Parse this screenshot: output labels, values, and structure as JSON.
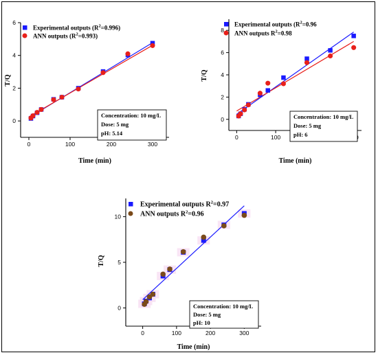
{
  "chart_data": [
    {
      "type": "scatter",
      "xlabel": "Time (min)",
      "ylabel": "T/Q",
      "xlim": [
        -20,
        340
      ],
      "ylim": [
        -1,
        6
      ],
      "xticks": [
        0,
        100,
        200,
        300
      ],
      "yticks": [
        0,
        2,
        4,
        6
      ],
      "legend": [
        {
          "label_main": "Experimental outputs (R",
          "label_sup": "2",
          "label_tail": "=0.996)",
          "color": "#1a1aff",
          "marker": "square"
        },
        {
          "label_main": "ANN outputs (R",
          "label_sup": "2",
          "label_tail": "=0.993)",
          "color": "#e8201a",
          "marker": "circle"
        }
      ],
      "info_lines": [
        "Concentration: 10 mg/L",
        "Dose: 5 mg",
        "pH: 5.14"
      ],
      "series": [
        {
          "name": "Experimental outputs (R2=0.996)",
          "color": "#1a1aff",
          "marker": "square",
          "x": [
            5,
            10,
            20,
            30,
            60,
            80,
            120,
            180,
            240,
            300
          ],
          "y": [
            0.15,
            0.3,
            0.5,
            0.7,
            1.32,
            1.45,
            2.0,
            3.02,
            4.02,
            4.75
          ]
        },
        {
          "name": "ANN outputs (R2=0.993)",
          "color": "#e8201a",
          "marker": "circle",
          "x": [
            5,
            10,
            20,
            30,
            60,
            80,
            120,
            180,
            240,
            300
          ],
          "y": [
            0.18,
            0.32,
            0.52,
            0.7,
            1.3,
            1.45,
            1.95,
            2.95,
            4.1,
            4.6
          ]
        }
      ],
      "fits": [
        {
          "color": "#1a1aff",
          "x": [
            0,
            300
          ],
          "y": [
            0.2,
            4.78
          ]
        },
        {
          "color": "#e8201a",
          "x": [
            0,
            300
          ],
          "y": [
            0.25,
            4.62
          ]
        }
      ]
    },
    {
      "type": "scatter",
      "xlabel": "Time (min)",
      "ylabel": "T/Q",
      "xlim": [
        -20,
        320
      ],
      "ylim": [
        -1,
        9
      ],
      "xticks": [
        0,
        100,
        200,
        300
      ],
      "yticks": [
        0,
        2,
        4,
        6,
        8
      ],
      "legend": [
        {
          "label_main": "Experimental outputs (R",
          "label_sup": "2",
          "label_tail": "=0.96",
          "color": "#1a1aff",
          "marker": "square"
        },
        {
          "label_main": "ANN outputs R",
          "label_sup": "2",
          "label_tail": "=0.98",
          "color": "#e8201a",
          "marker": "circle"
        }
      ],
      "info_lines": [
        "Concentration: 10 mg/L",
        "Dose: 5 mg",
        "pH: 6"
      ],
      "series": [
        {
          "name": "Experimental outputs (R2=0.96",
          "color": "#1a1aff",
          "marker": "square",
          "x": [
            5,
            10,
            20,
            30,
            60,
            80,
            120,
            180,
            240,
            300
          ],
          "y": [
            0.3,
            0.5,
            0.9,
            1.35,
            2.2,
            2.6,
            3.75,
            5.45,
            6.2,
            7.5
          ]
        },
        {
          "name": "ANN outputs R2=0.98",
          "color": "#e8201a",
          "marker": "circle",
          "x": [
            5,
            10,
            20,
            30,
            60,
            80,
            120,
            180,
            240,
            300
          ],
          "y": [
            0.3,
            0.5,
            0.85,
            1.3,
            2.35,
            3.25,
            3.2,
            5.1,
            5.7,
            6.45
          ]
        }
      ],
      "fits": [
        {
          "color": "#1a1aff",
          "x": [
            0,
            300
          ],
          "y": [
            0.45,
            7.85
          ]
        },
        {
          "color": "#e8201a",
          "x": [
            0,
            300
          ],
          "y": [
            0.75,
            7.0
          ]
        }
      ]
    },
    {
      "type": "scatter",
      "xlabel": "Time (min)",
      "ylabel": "T/Q",
      "xlim": [
        -50,
        350
      ],
      "ylim": [
        -2,
        12
      ],
      "xticks": [
        0,
        100,
        200,
        300
      ],
      "yticks": [
        0,
        5,
        10
      ],
      "legend": [
        {
          "label_main": "Experimental outputs R",
          "label_sup": "2",
          "label_tail": "=0.97",
          "color": "#1a1aff",
          "marker": "square"
        },
        {
          "label_main": "ANN outputs R",
          "label_sup": "2",
          "label_tail": "=0.96",
          "color": "#7a4a1a",
          "marker": "circle"
        }
      ],
      "info_lines": [
        "Concentration: 10 mg/L",
        "Dose: 5 mg",
        "pH: 10"
      ],
      "series": [
        {
          "name": "Experimental outputs R2=0.97",
          "color": "#1a1aff",
          "marker": "square",
          "x": [
            5,
            10,
            20,
            30,
            60,
            80,
            120,
            180,
            240,
            300
          ],
          "y": [
            0.45,
            0.75,
            1.1,
            1.5,
            3.5,
            4.2,
            6.1,
            7.4,
            9.1,
            10.35
          ]
        },
        {
          "name": "ANN outputs R2=0.96",
          "color": "#7a4a1a",
          "marker": "circle",
          "x": [
            5,
            10,
            20,
            30,
            60,
            80,
            120,
            180,
            240,
            300
          ],
          "y": [
            0.4,
            0.7,
            1.2,
            1.5,
            3.7,
            4.25,
            6.15,
            7.75,
            9.0,
            10.15
          ]
        }
      ],
      "fits": [
        {
          "color": "#1a1aff",
          "x": [
            0,
            300
          ],
          "y": [
            0.9,
            11.2
          ]
        }
      ]
    }
  ]
}
